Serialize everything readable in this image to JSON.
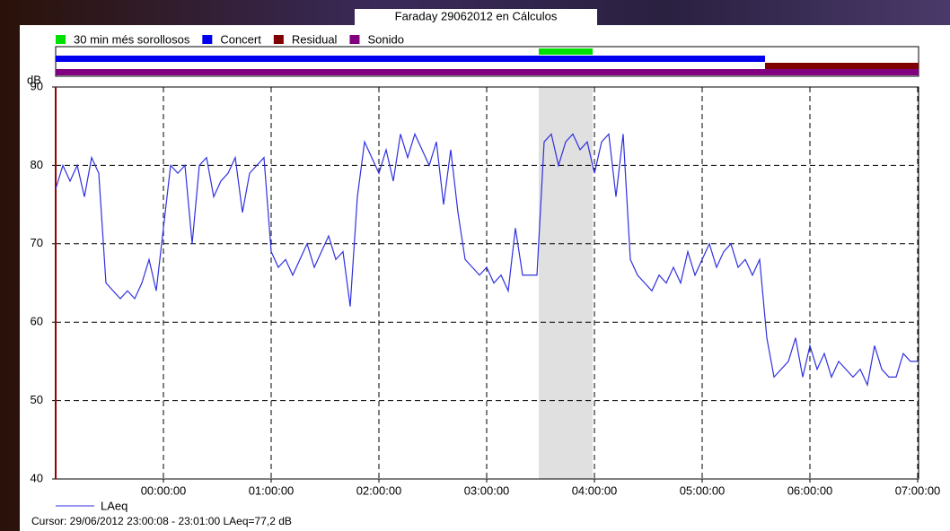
{
  "chart_data": {
    "type": "line",
    "title": "Faraday 29062012 en Cálculos",
    "y_label": "dB",
    "bands": [
      {
        "name": "30 min més sorollosos",
        "color": "#00e000",
        "start": 269,
        "end": 299,
        "shade": true
      },
      {
        "name": "Concert",
        "color": "#0000ee",
        "start": 0,
        "end": 395
      },
      {
        "name": "Residual",
        "color": "#800000",
        "start": 395,
        "end": 480.5
      },
      {
        "name": "Sonido",
        "color": "#800080",
        "start": 0,
        "end": 480.5
      }
    ],
    "x": [
      0,
      4,
      8,
      12,
      16,
      20,
      24,
      28,
      32,
      36,
      40,
      44,
      48,
      52,
      56,
      60,
      64,
      68,
      72,
      76,
      80,
      84,
      88,
      92,
      96,
      100,
      104,
      108,
      112,
      116,
      120,
      124,
      128,
      132,
      136,
      140,
      144,
      148,
      152,
      156,
      160,
      164,
      168,
      172,
      176,
      180,
      184,
      188,
      192,
      196,
      200,
      204,
      208,
      212,
      216,
      220,
      224,
      228,
      232,
      236,
      240,
      244,
      248,
      252,
      256,
      260,
      264,
      268,
      272,
      276,
      280,
      284,
      288,
      292,
      296,
      300,
      304,
      308,
      312,
      316,
      320,
      324,
      328,
      332,
      336,
      340,
      344,
      348,
      352,
      356,
      360,
      364,
      368,
      372,
      376,
      380,
      384,
      388,
      392,
      396,
      400,
      404,
      408,
      412,
      416,
      420,
      424,
      428,
      432,
      436,
      440,
      444,
      448,
      452,
      456,
      460,
      464,
      468,
      472,
      476,
      480
    ],
    "series": [
      {
        "name": "LAeq",
        "color": "#3030e0",
        "values": [
          77,
          80,
          78,
          80,
          76,
          81,
          79,
          65,
          64,
          63,
          64,
          63,
          65,
          68,
          64,
          72,
          80,
          79,
          80,
          70,
          80,
          81,
          76,
          78,
          79,
          81,
          74,
          79,
          80,
          81,
          69,
          67,
          68,
          66,
          68,
          70,
          67,
          69,
          71,
          68,
          69,
          62,
          76,
          83,
          81,
          79,
          82,
          78,
          84,
          81,
          84,
          82,
          80,
          83,
          75,
          82,
          74,
          68,
          67,
          66,
          67,
          65,
          66,
          64,
          72,
          66,
          66,
          66,
          83,
          84,
          80,
          83,
          84,
          82,
          83,
          79,
          83,
          84,
          76,
          84,
          68,
          66,
          65,
          64,
          66,
          65,
          67,
          65,
          69,
          66,
          68,
          70,
          67,
          69,
          70,
          67,
          68,
          66,
          68,
          58,
          53,
          54,
          55,
          58,
          53,
          57,
          54,
          56,
          53,
          55,
          54,
          53,
          54,
          52,
          57,
          54,
          53,
          53,
          56,
          55,
          55
        ]
      }
    ],
    "xlim": [
      0,
      480.5
    ],
    "xticks": [
      {
        "value": 60,
        "label": "00:00:00"
      },
      {
        "value": 120,
        "label": "01:00:00"
      },
      {
        "value": 180,
        "label": "02:00:00"
      },
      {
        "value": 240,
        "label": "03:00:00"
      },
      {
        "value": 300,
        "label": "04:00:00"
      },
      {
        "value": 360,
        "label": "05:00:00"
      },
      {
        "value": 420,
        "label": "06:00:00"
      },
      {
        "value": 480,
        "label": "07:00:00"
      }
    ],
    "ylim": [
      40,
      90
    ],
    "yticks": [
      40,
      50,
      60,
      70,
      80,
      90
    ],
    "grid": true,
    "cursor": "Cursor: 29/06/2012 23:00:08 - 23:01:00  LAeq=77,2 dB"
  }
}
